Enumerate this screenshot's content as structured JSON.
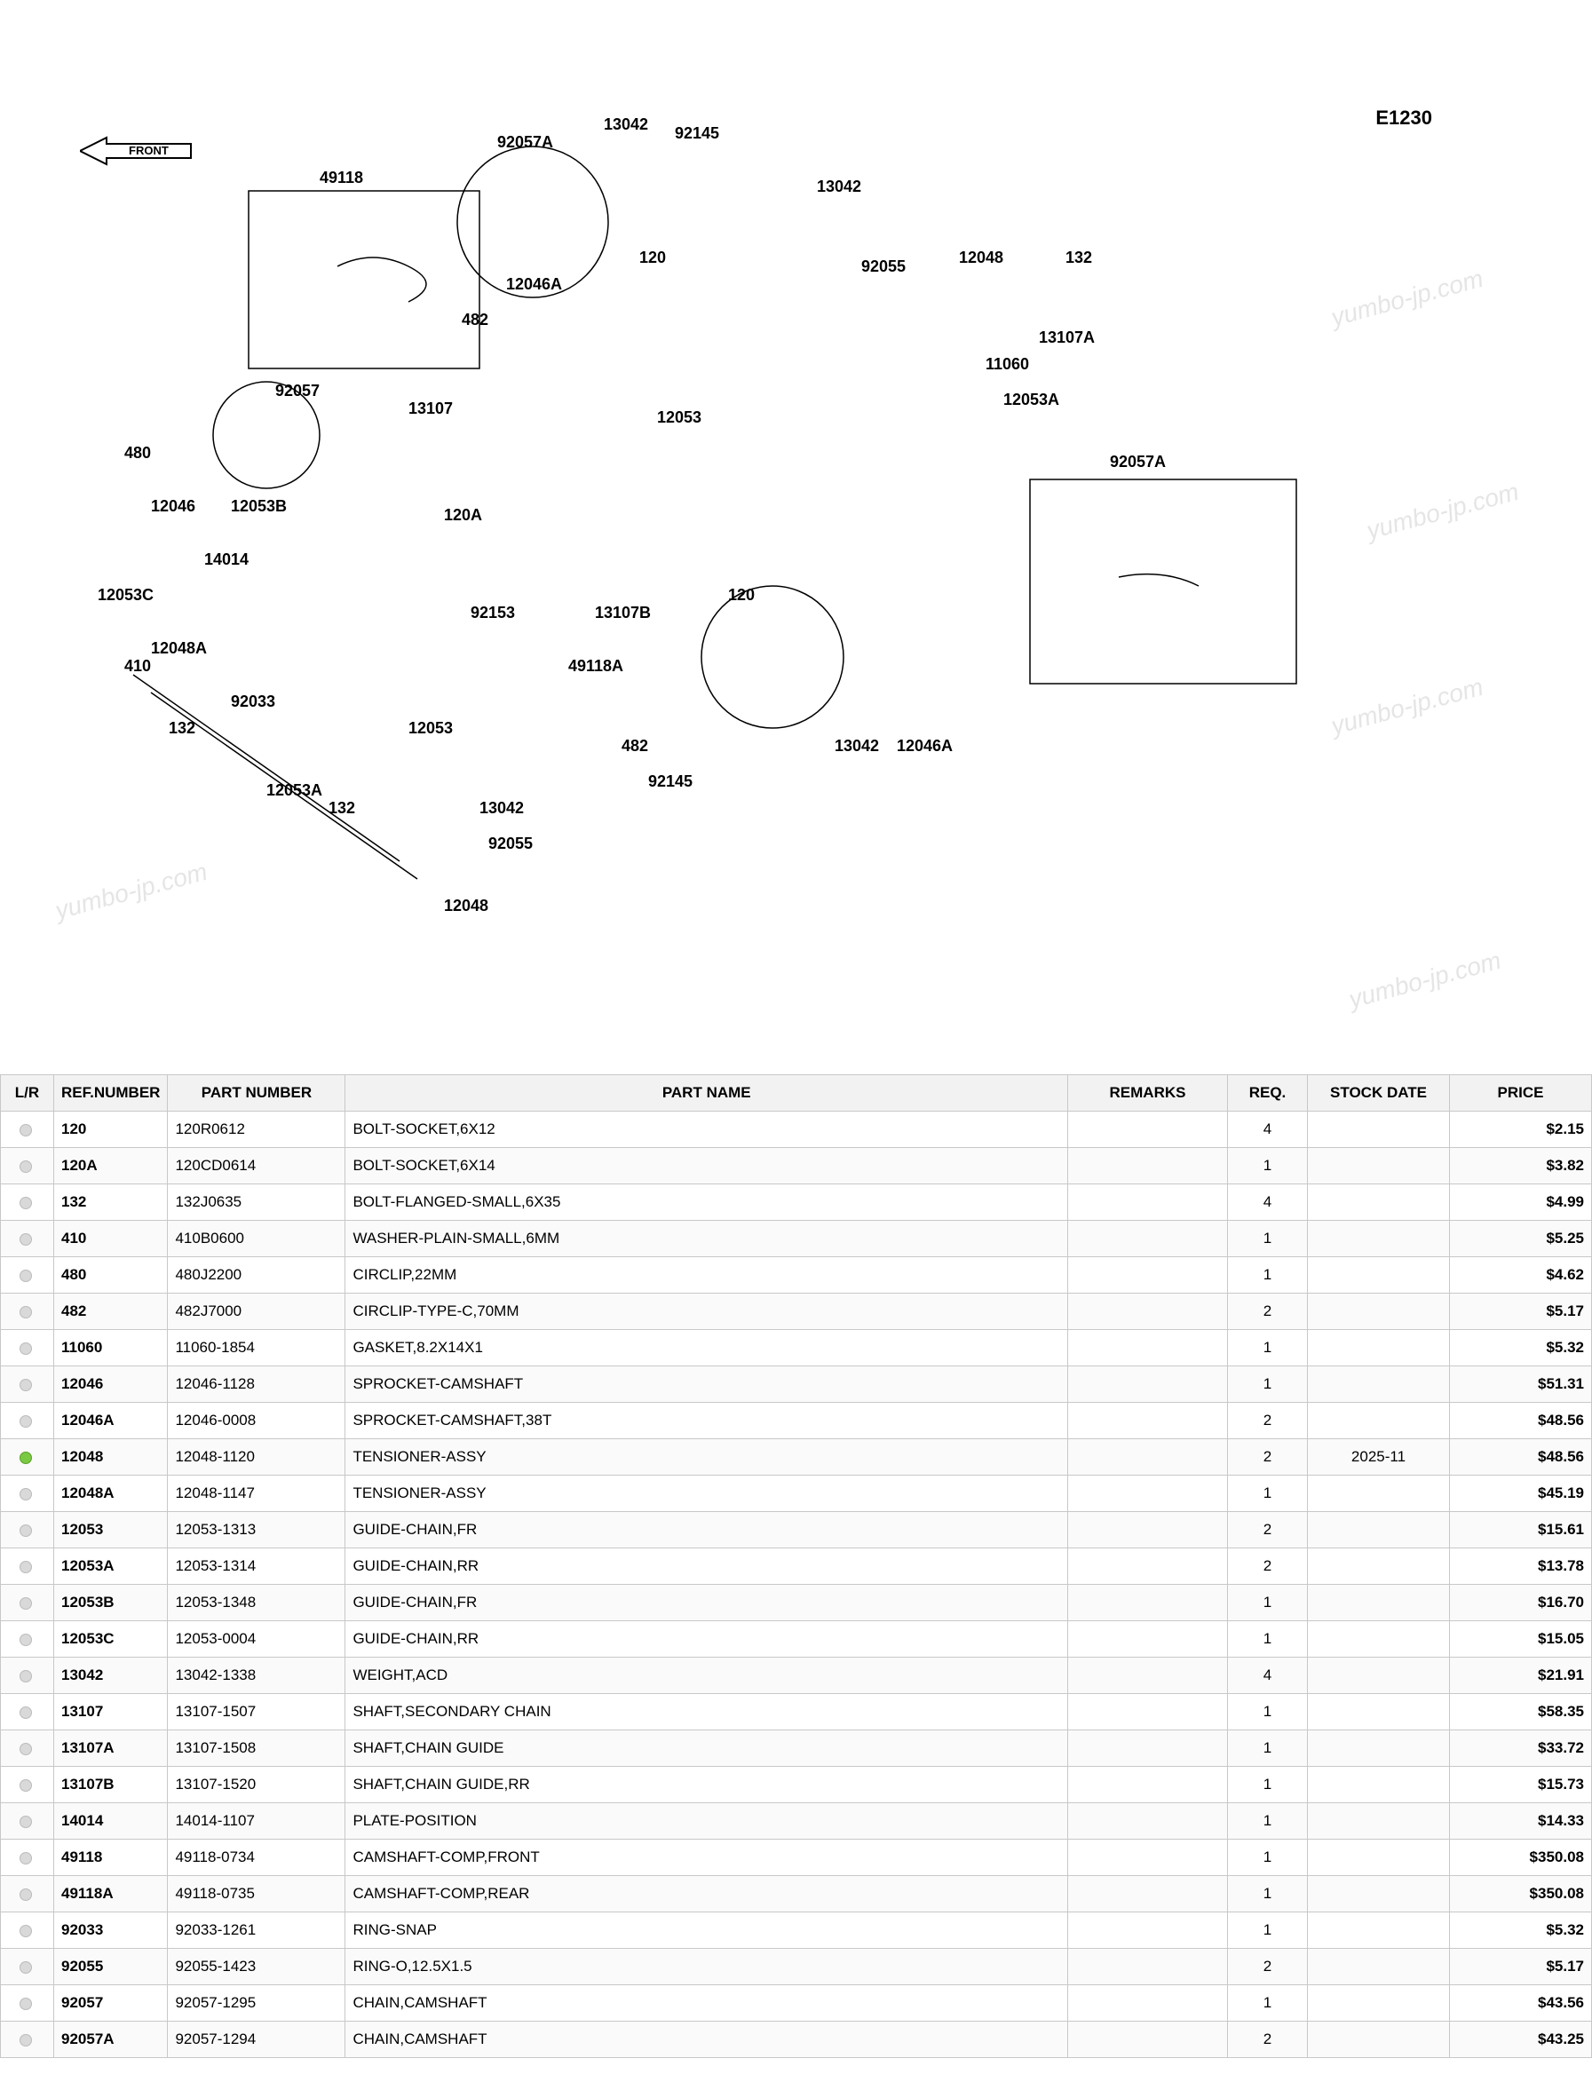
{
  "diagram": {
    "code": "E1230",
    "front_label": "FRONT",
    "watermark_text": "yumbo-jp.com",
    "callouts": [
      "49118",
      "92057A",
      "13042",
      "92145",
      "13042",
      "120",
      "12046A",
      "482",
      "92055",
      "12048",
      "132",
      "13107A",
      "11060",
      "12053A",
      "12053",
      "92057",
      "13107",
      "480",
      "12046",
      "12053B",
      "120A",
      "14014",
      "12053C",
      "92153",
      "12048A",
      "410",
      "92033",
      "132",
      "12053",
      "13107B",
      "120",
      "92057A",
      "49118A",
      "13042",
      "12046A",
      "482",
      "92145",
      "13042",
      "92055",
      "12048",
      "132",
      "12053A"
    ],
    "background_color": "#ffffff",
    "line_color": "#000000",
    "text_color": "#000000",
    "watermark_color": "rgba(180,180,180,0.35)"
  },
  "table": {
    "headers": {
      "lr": "L/R",
      "ref": "REF.NUMBER",
      "part": "PART NUMBER",
      "name": "PART NAME",
      "remarks": "REMARKS",
      "req": "REQ.",
      "date": "STOCK DATE",
      "price": "PRICE"
    },
    "rows": [
      {
        "ref": "120",
        "part": "120R0612",
        "name": "BOLT-SOCKET,6X12",
        "remarks": "",
        "req": "4",
        "stock": "out",
        "date": "",
        "price": "$2.15"
      },
      {
        "ref": "120A",
        "part": "120CD0614",
        "name": "BOLT-SOCKET,6X14",
        "remarks": "",
        "req": "1",
        "stock": "out",
        "date": "",
        "price": "$3.82"
      },
      {
        "ref": "132",
        "part": "132J0635",
        "name": "BOLT-FLANGED-SMALL,6X35",
        "remarks": "",
        "req": "4",
        "stock": "out",
        "date": "",
        "price": "$4.99"
      },
      {
        "ref": "410",
        "part": "410B0600",
        "name": "WASHER-PLAIN-SMALL,6MM",
        "remarks": "",
        "req": "1",
        "stock": "out",
        "date": "",
        "price": "$5.25"
      },
      {
        "ref": "480",
        "part": "480J2200",
        "name": "CIRCLIP,22MM",
        "remarks": "",
        "req": "1",
        "stock": "out",
        "date": "",
        "price": "$4.62"
      },
      {
        "ref": "482",
        "part": "482J7000",
        "name": "CIRCLIP-TYPE-C,70MM",
        "remarks": "",
        "req": "2",
        "stock": "out",
        "date": "",
        "price": "$5.17"
      },
      {
        "ref": "11060",
        "part": "11060-1854",
        "name": "GASKET,8.2X14X1",
        "remarks": "",
        "req": "1",
        "stock": "out",
        "date": "",
        "price": "$5.32"
      },
      {
        "ref": "12046",
        "part": "12046-1128",
        "name": "SPROCKET-CAMSHAFT",
        "remarks": "",
        "req": "1",
        "stock": "out",
        "date": "",
        "price": "$51.31"
      },
      {
        "ref": "12046A",
        "part": "12046-0008",
        "name": "SPROCKET-CAMSHAFT,38T",
        "remarks": "",
        "req": "2",
        "stock": "out",
        "date": "",
        "price": "$48.56"
      },
      {
        "ref": "12048",
        "part": "12048-1120",
        "name": "TENSIONER-ASSY",
        "remarks": "",
        "req": "2",
        "stock": "in",
        "date": "2025-11",
        "price": "$48.56"
      },
      {
        "ref": "12048A",
        "part": "12048-1147",
        "name": "TENSIONER-ASSY",
        "remarks": "",
        "req": "1",
        "stock": "out",
        "date": "",
        "price": "$45.19"
      },
      {
        "ref": "12053",
        "part": "12053-1313",
        "name": "GUIDE-CHAIN,FR",
        "remarks": "",
        "req": "2",
        "stock": "out",
        "date": "",
        "price": "$15.61"
      },
      {
        "ref": "12053A",
        "part": "12053-1314",
        "name": "GUIDE-CHAIN,RR",
        "remarks": "",
        "req": "2",
        "stock": "out",
        "date": "",
        "price": "$13.78"
      },
      {
        "ref": "12053B",
        "part": "12053-1348",
        "name": "GUIDE-CHAIN,FR",
        "remarks": "",
        "req": "1",
        "stock": "out",
        "date": "",
        "price": "$16.70"
      },
      {
        "ref": "12053C",
        "part": "12053-0004",
        "name": "GUIDE-CHAIN,RR",
        "remarks": "",
        "req": "1",
        "stock": "out",
        "date": "",
        "price": "$15.05"
      },
      {
        "ref": "13042",
        "part": "13042-1338",
        "name": "WEIGHT,ACD",
        "remarks": "",
        "req": "4",
        "stock": "out",
        "date": "",
        "price": "$21.91"
      },
      {
        "ref": "13107",
        "part": "13107-1507",
        "name": "SHAFT,SECONDARY CHAIN",
        "remarks": "",
        "req": "1",
        "stock": "out",
        "date": "",
        "price": "$58.35"
      },
      {
        "ref": "13107A",
        "part": "13107-1508",
        "name": "SHAFT,CHAIN GUIDE",
        "remarks": "",
        "req": "1",
        "stock": "out",
        "date": "",
        "price": "$33.72"
      },
      {
        "ref": "13107B",
        "part": "13107-1520",
        "name": "SHAFT,CHAIN GUIDE,RR",
        "remarks": "",
        "req": "1",
        "stock": "out",
        "date": "",
        "price": "$15.73"
      },
      {
        "ref": "14014",
        "part": "14014-1107",
        "name": "PLATE-POSITION",
        "remarks": "",
        "req": "1",
        "stock": "out",
        "date": "",
        "price": "$14.33"
      },
      {
        "ref": "49118",
        "part": "49118-0734",
        "name": "CAMSHAFT-COMP,FRONT",
        "remarks": "",
        "req": "1",
        "stock": "out",
        "date": "",
        "price": "$350.08"
      },
      {
        "ref": "49118A",
        "part": "49118-0735",
        "name": "CAMSHAFT-COMP,REAR",
        "remarks": "",
        "req": "1",
        "stock": "out",
        "date": "",
        "price": "$350.08"
      },
      {
        "ref": "92033",
        "part": "92033-1261",
        "name": "RING-SNAP",
        "remarks": "",
        "req": "1",
        "stock": "out",
        "date": "",
        "price": "$5.32"
      },
      {
        "ref": "92055",
        "part": "92055-1423",
        "name": "RING-O,12.5X1.5",
        "remarks": "",
        "req": "2",
        "stock": "out",
        "date": "",
        "price": "$5.17"
      },
      {
        "ref": "92057",
        "part": "92057-1295",
        "name": "CHAIN,CAMSHAFT",
        "remarks": "",
        "req": "1",
        "stock": "out",
        "date": "",
        "price": "$43.56"
      },
      {
        "ref": "92057A",
        "part": "92057-1294",
        "name": "CHAIN,CAMSHAFT",
        "remarks": "",
        "req": "2",
        "stock": "out",
        "date": "",
        "price": "$43.25"
      }
    ],
    "header_bg": "#f2f2f2",
    "border_color": "#c8c8c8",
    "row_alt_bg": "#fafafa",
    "stock_out_color": "#d9d9d9",
    "stock_in_color": "#7ac943"
  }
}
